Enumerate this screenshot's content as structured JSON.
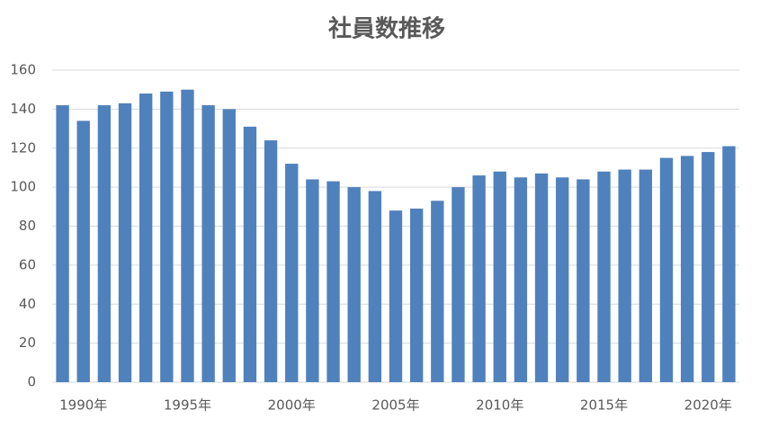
{
  "chart_data": {
    "type": "bar",
    "title": "社員数推移",
    "categories": [
      null,
      "1990年",
      null,
      null,
      null,
      null,
      "1995年",
      null,
      null,
      null,
      null,
      "2000年",
      null,
      null,
      null,
      null,
      "2005年",
      null,
      null,
      null,
      null,
      "2010年",
      null,
      null,
      null,
      null,
      "2015年",
      null,
      null,
      null,
      null,
      "2020年",
      null
    ],
    "values": [
      142,
      134,
      142,
      143,
      148,
      149,
      150,
      142,
      140,
      131,
      124,
      112,
      104,
      103,
      100,
      98,
      88,
      89,
      93,
      100,
      106,
      108,
      105,
      107,
      105,
      104,
      108,
      109,
      109,
      115,
      116,
      118,
      121
    ],
    "color": "#4f81bd",
    "ylim": [
      0,
      160
    ],
    "yticks": [
      0,
      20,
      40,
      60,
      80,
      100,
      120,
      140,
      160
    ],
    "grid": true
  }
}
